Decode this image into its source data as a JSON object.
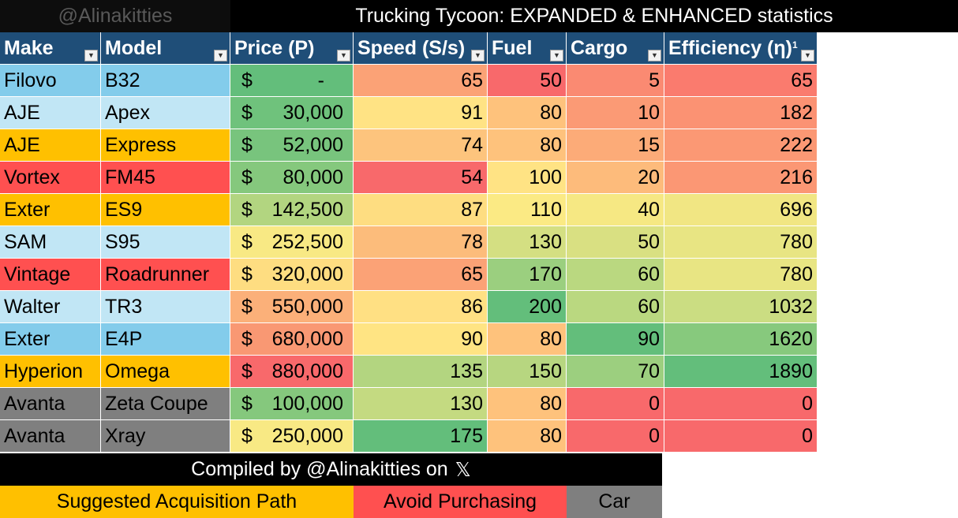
{
  "watermark": "@Alinakitties",
  "title": "Trucking Tycoon: EXPANDED & ENHANCED statistics",
  "headers": {
    "make": "Make",
    "model": "Model",
    "price": "Price (P)",
    "speed": "Speed (S/s)",
    "fuel": "Fuel",
    "cargo": "Cargo",
    "efficiency": "Efficiency (η)",
    "efficiency_sup": "1"
  },
  "filter_icon": "dropdown-filter-icon",
  "currency_symbol": "$",
  "category_colors": {
    "suggested": "#ffc000",
    "avoid": "#ff5050",
    "car": "#7f7f7f",
    "neutral_dark": "#83cceb",
    "neutral_light": "#c1e6f5"
  },
  "rows": [
    {
      "make": "Filovo",
      "model": "B32",
      "price": "-",
      "speed": "65",
      "fuel": "50",
      "cargo": "5",
      "efficiency": "65",
      "category": "neutral_dark"
    },
    {
      "make": "AJE",
      "model": "Apex",
      "price": "30,000",
      "speed": "91",
      "fuel": "80",
      "cargo": "10",
      "efficiency": "182",
      "category": "neutral_light"
    },
    {
      "make": "AJE",
      "model": "Express",
      "price": "52,000",
      "speed": "74",
      "fuel": "80",
      "cargo": "15",
      "efficiency": "222",
      "category": "suggested"
    },
    {
      "make": "Vortex",
      "model": "FM45",
      "price": "80,000",
      "speed": "54",
      "fuel": "100",
      "cargo": "20",
      "efficiency": "216",
      "category": "avoid"
    },
    {
      "make": "Exter",
      "model": "ES9",
      "price": "142,500",
      "speed": "87",
      "fuel": "110",
      "cargo": "40",
      "efficiency": "696",
      "category": "suggested"
    },
    {
      "make": "SAM",
      "model": "S95",
      "price": "252,500",
      "speed": "78",
      "fuel": "130",
      "cargo": "50",
      "efficiency": "780",
      "category": "neutral_light"
    },
    {
      "make": "Vintage",
      "model": "Roadrunner",
      "price": "320,000",
      "speed": "65",
      "fuel": "170",
      "cargo": "60",
      "efficiency": "780",
      "category": "avoid"
    },
    {
      "make": "Walter",
      "model": "TR3",
      "price": "550,000",
      "speed": "86",
      "fuel": "200",
      "cargo": "60",
      "efficiency": "1032",
      "category": "neutral_light"
    },
    {
      "make": "Exter",
      "model": "E4P",
      "price": "680,000",
      "speed": "90",
      "fuel": "80",
      "cargo": "90",
      "efficiency": "1620",
      "category": "neutral_dark"
    },
    {
      "make": "Hyperion",
      "model": "Omega",
      "price": "880,000",
      "speed": "135",
      "fuel": "150",
      "cargo": "70",
      "efficiency": "1890",
      "category": "suggested"
    },
    {
      "make": "Avanta",
      "model": "Zeta Coupe",
      "price": "100,000",
      "speed": "130",
      "fuel": "80",
      "cargo": "0",
      "efficiency": "0",
      "category": "car"
    },
    {
      "make": "Avanta",
      "model": "Xray",
      "price": "250,000",
      "speed": "175",
      "fuel": "80",
      "cargo": "0",
      "efficiency": "0",
      "category": "car"
    }
  ],
  "cell_colors": {
    "price": [
      "#63be7b",
      "#6fc27c",
      "#78c47d",
      "#85c87d",
      "#b2d580",
      "#f8e984",
      "#fedd81",
      "#fbb079",
      "#f99873",
      "#f8696b",
      "#85c87d",
      "#f8e984"
    ],
    "speed": [
      "#fba276",
      "#ffe384",
      "#fdc47d",
      "#f8696b",
      "#fedd81",
      "#fcbc7b",
      "#fba276",
      "#ffe083",
      "#ffe483",
      "#b3d580",
      "#c4da81",
      "#63be7b"
    ],
    "fuel": [
      "#f8696b",
      "#fec27c",
      "#fec27c",
      "#ffe384",
      "#fbea84",
      "#d4df82",
      "#9bcf7f",
      "#63be7b",
      "#fec27c",
      "#b7d680",
      "#fec27c",
      "#fec27c"
    ],
    "cargo": [
      "#fa8a72",
      "#fb9a75",
      "#fcab78",
      "#fdbb7b",
      "#f6e883",
      "#d9e082",
      "#bad880",
      "#bad880",
      "#63be7b",
      "#9ccf7f",
      "#f8696b",
      "#f8696b"
    ],
    "efficiency": [
      "#fa7b6e",
      "#fb9273",
      "#fb9874",
      "#fb9774",
      "#f1e683",
      "#e8e583",
      "#e8e583",
      "#cbdd82",
      "#87c97d",
      "#63be7b",
      "#f8696b",
      "#f8696b"
    ]
  },
  "footer": {
    "credit_prefix": "Compiled by @Alinakitties on ",
    "credit_logo": "𝕏",
    "legend_suggested": "Suggested Acquisition Path",
    "legend_avoid": "Avoid Purchasing",
    "legend_car": "Car"
  }
}
